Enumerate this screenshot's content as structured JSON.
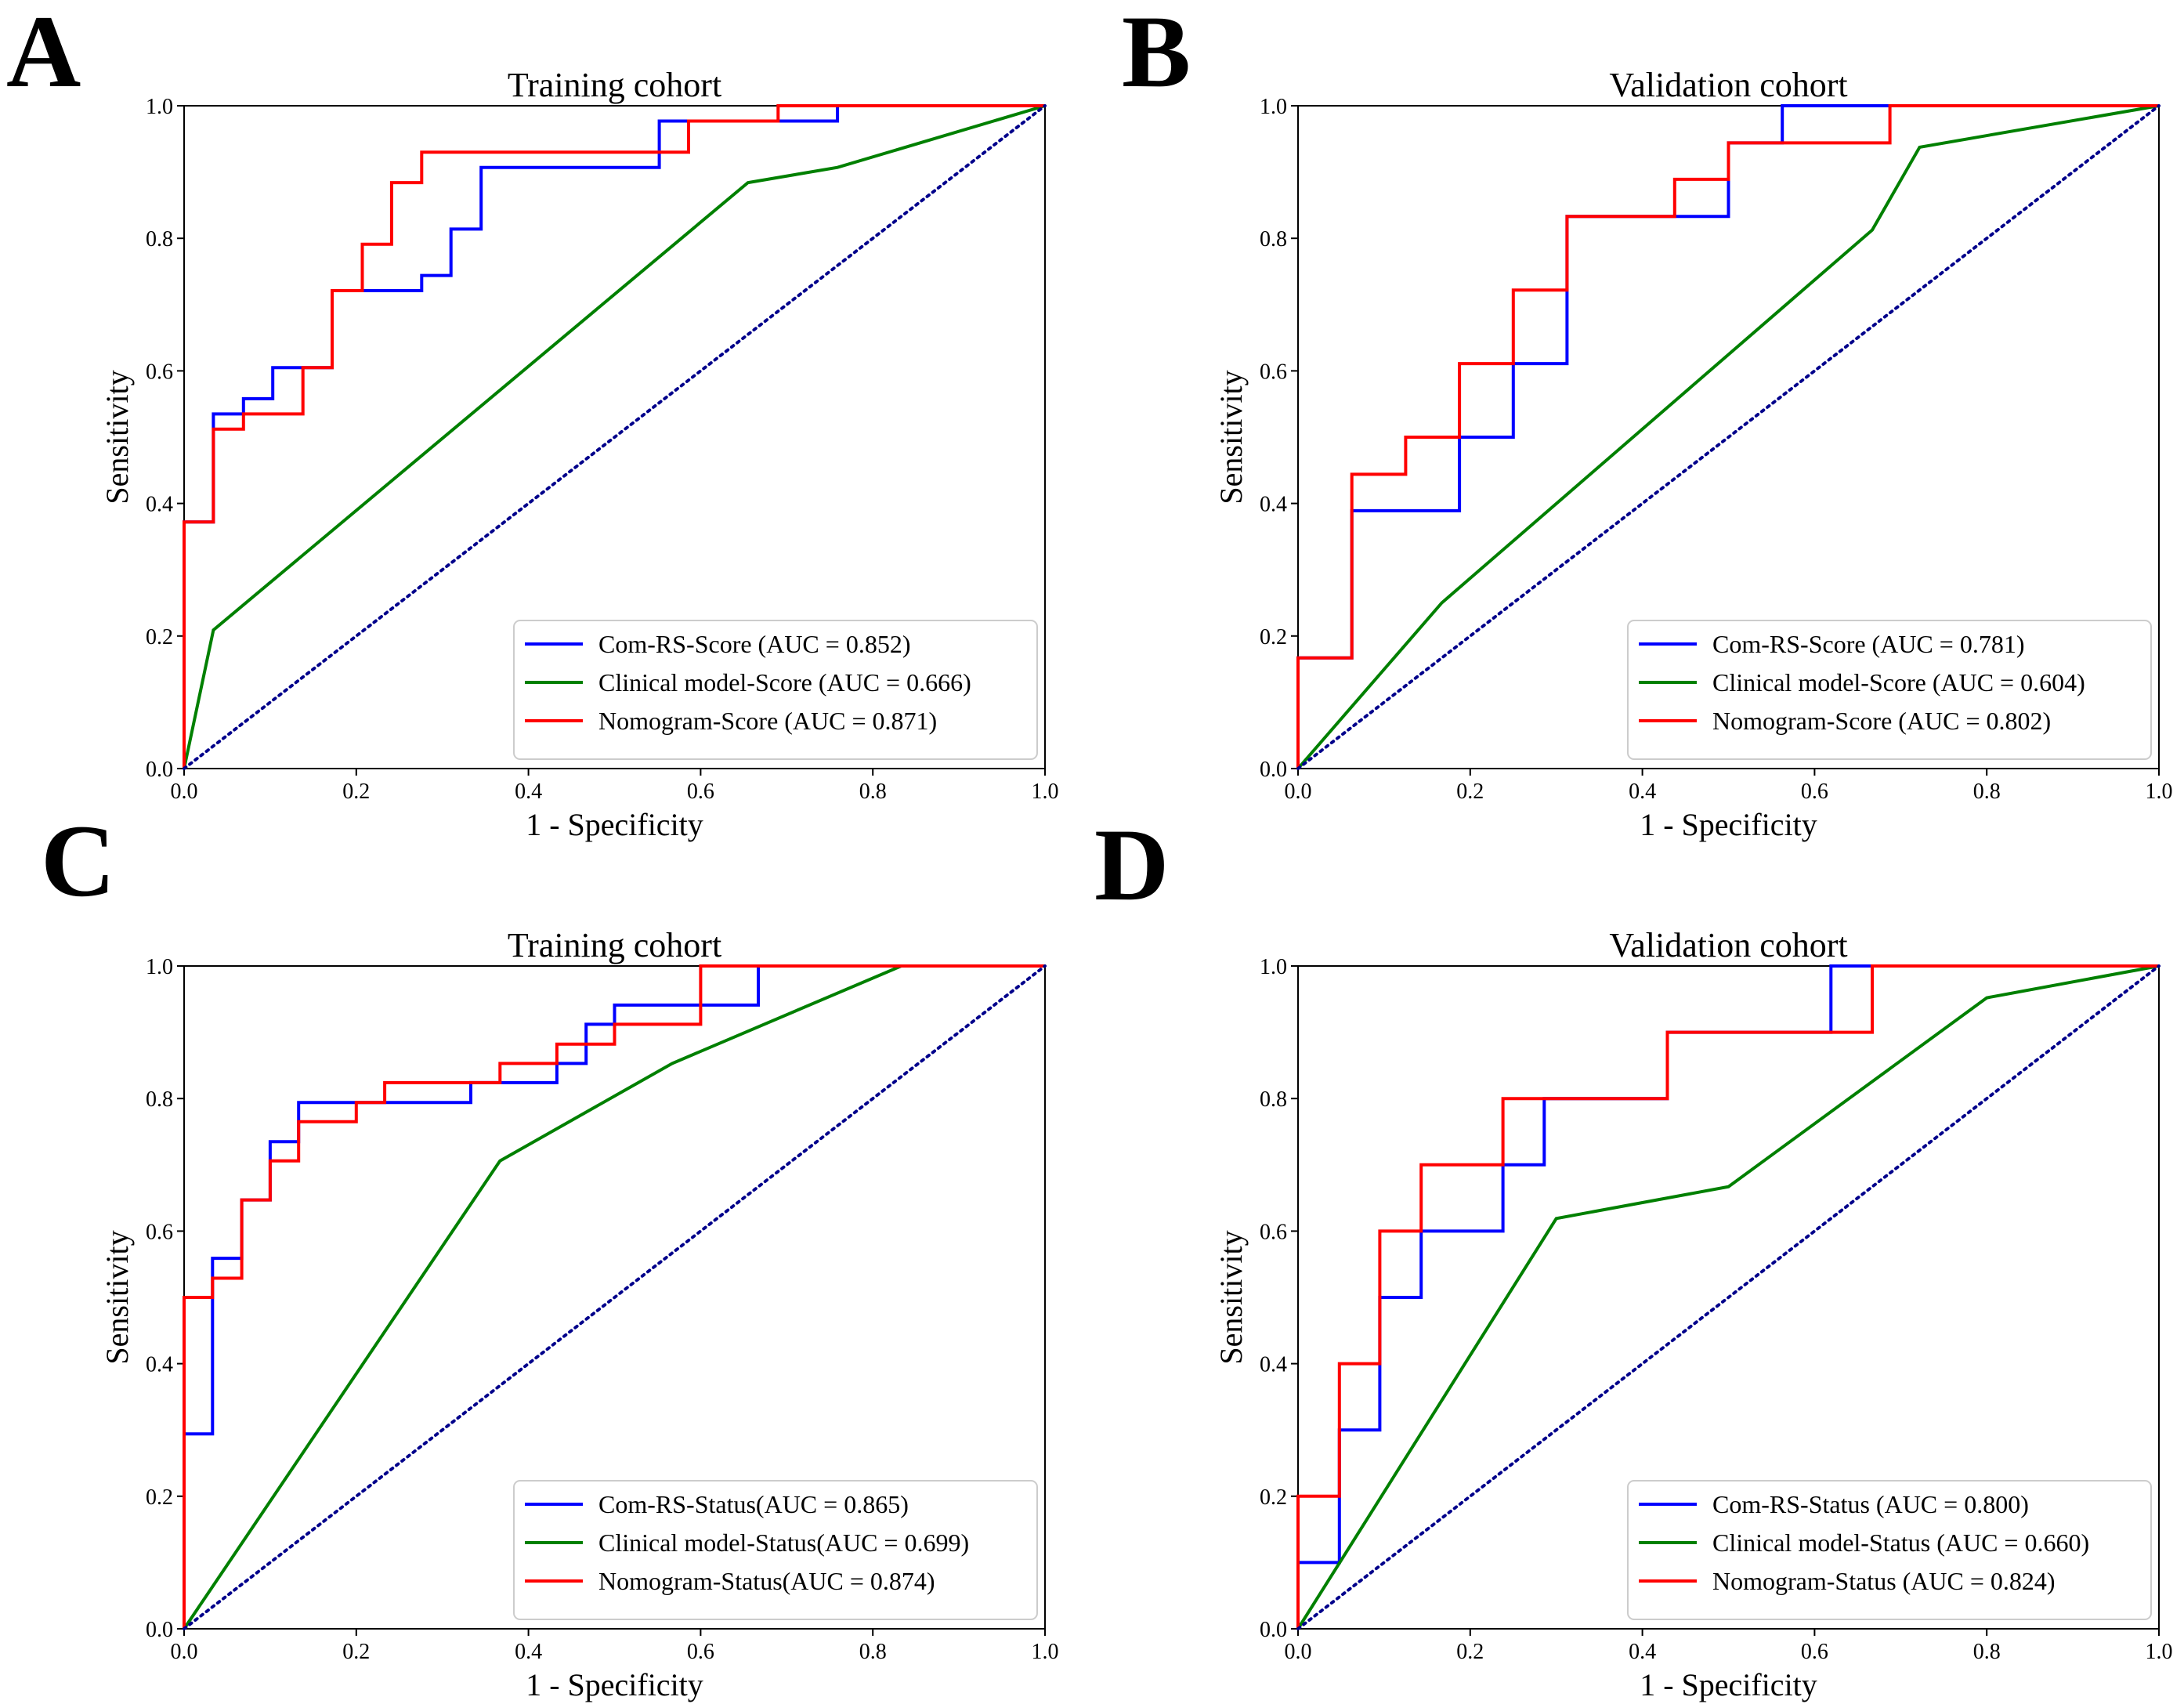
{
  "chart_data": [
    {
      "type": "line",
      "panel_label": "A",
      "title": "Training cohort",
      "xlabel": "1 - Specificity",
      "ylabel": "Sensitivity",
      "xlim": [
        0,
        1
      ],
      "ylim": [
        0,
        1
      ],
      "xticks": [
        "0.0",
        "0.2",
        "0.4",
        "0.6",
        "0.8",
        "1.0"
      ],
      "yticks": [
        "0.0",
        "0.2",
        "0.4",
        "0.6",
        "0.8",
        "1.0"
      ],
      "legend_position": "lower-right",
      "series": [
        {
          "name": "Com-RS-Score (AUC = 0.852)",
          "color": "#0000ff",
          "x": [
            0,
            0,
            0.034,
            0.034,
            0.069,
            0.069,
            0.103,
            0.103,
            0.138,
            0.138,
            0.172,
            0.172,
            0.276,
            0.276,
            0.31,
            0.31,
            0.345,
            0.345,
            0.552,
            0.552,
            0.759,
            0.759,
            1
          ],
          "y": [
            0,
            0.372,
            0.372,
            0.535,
            0.535,
            0.558,
            0.558,
            0.605,
            0.605,
            0.605,
            0.605,
            0.721,
            0.721,
            0.744,
            0.744,
            0.814,
            0.814,
            0.907,
            0.907,
            0.977,
            0.977,
            1,
            1
          ]
        },
        {
          "name": "Clinical model-Score (AUC = 0.666)",
          "color": "#008000",
          "x": [
            0,
            0.034,
            0.655,
            0.759,
            1
          ],
          "y": [
            0,
            0.209,
            0.884,
            0.907,
            1
          ]
        },
        {
          "name": "Nomogram-Score (AUC = 0.871)",
          "color": "#ff0000",
          "x": [
            0,
            0,
            0.034,
            0.034,
            0.069,
            0.069,
            0.138,
            0.138,
            0.172,
            0.172,
            0.207,
            0.207,
            0.241,
            0.241,
            0.276,
            0.276,
            0.586,
            0.586,
            0.69,
            0.69,
            1
          ],
          "y": [
            0,
            0.372,
            0.372,
            0.512,
            0.512,
            0.535,
            0.535,
            0.605,
            0.605,
            0.721,
            0.721,
            0.791,
            0.791,
            0.884,
            0.884,
            0.93,
            0.93,
            0.977,
            0.977,
            1,
            1
          ]
        },
        {
          "name": "Chance",
          "color": "#00008b",
          "dashed": true,
          "legend": false,
          "x": [
            0,
            1
          ],
          "y": [
            0,
            1
          ]
        }
      ]
    },
    {
      "type": "line",
      "panel_label": "B",
      "title": "Validation cohort",
      "xlabel": "1 - Specificity",
      "ylabel": "Sensitivity",
      "xlim": [
        0,
        1
      ],
      "ylim": [
        0,
        1
      ],
      "xticks": [
        "0.0",
        "0.2",
        "0.4",
        "0.6",
        "0.8",
        "1.0"
      ],
      "yticks": [
        "0.0",
        "0.2",
        "0.4",
        "0.6",
        "0.8",
        "1.0"
      ],
      "legend_position": "lower-right",
      "series": [
        {
          "name": "Com-RS-Score (AUC = 0.781)",
          "color": "#0000ff",
          "x": [
            0,
            0,
            0.0625,
            0.0625,
            0.1875,
            0.1875,
            0.25,
            0.25,
            0.3125,
            0.3125,
            0.5,
            0.5,
            0.5625,
            0.5625,
            1
          ],
          "y": [
            0,
            0.167,
            0.167,
            0.389,
            0.389,
            0.5,
            0.5,
            0.611,
            0.611,
            0.833,
            0.833,
            0.944,
            0.944,
            1,
            1
          ]
        },
        {
          "name": "Clinical model-Score (AUC = 0.604)",
          "color": "#008000",
          "x": [
            0,
            0.167,
            0.667,
            0.722,
            1
          ],
          "y": [
            0,
            0.25,
            0.8125,
            0.9375,
            1
          ]
        },
        {
          "name": "Nomogram-Score (AUC = 0.802)",
          "color": "#ff0000",
          "x": [
            0,
            0,
            0.0625,
            0.0625,
            0.125,
            0.125,
            0.1875,
            0.1875,
            0.25,
            0.25,
            0.3125,
            0.3125,
            0.4375,
            0.4375,
            0.5,
            0.5,
            0.6875,
            0.6875,
            1
          ],
          "y": [
            0,
            0.167,
            0.167,
            0.444,
            0.444,
            0.5,
            0.5,
            0.611,
            0.611,
            0.722,
            0.722,
            0.833,
            0.833,
            0.889,
            0.889,
            0.944,
            0.944,
            1,
            1
          ]
        },
        {
          "name": "Chance",
          "color": "#00008b",
          "dashed": true,
          "legend": false,
          "x": [
            0,
            1
          ],
          "y": [
            0,
            1
          ]
        }
      ]
    },
    {
      "type": "line",
      "panel_label": "C",
      "title": "Training cohort",
      "xlabel": "1 - Specificity",
      "ylabel": "Sensitivity",
      "xlim": [
        0,
        1
      ],
      "ylim": [
        0,
        1
      ],
      "xticks": [
        "0.0",
        "0.2",
        "0.4",
        "0.6",
        "0.8",
        "1.0"
      ],
      "yticks": [
        "0.0",
        "0.2",
        "0.4",
        "0.6",
        "0.8",
        "1.0"
      ],
      "legend_position": "lower-right",
      "series": [
        {
          "name": "Com-RS-Status(AUC = 0.865)",
          "color": "#0000ff",
          "x": [
            0,
            0,
            0.033,
            0.033,
            0.067,
            0.067,
            0.1,
            0.1,
            0.133,
            0.133,
            0.333,
            0.333,
            0.433,
            0.433,
            0.467,
            0.467,
            0.5,
            0.5,
            0.667,
            0.667,
            1
          ],
          "y": [
            0,
            0.294,
            0.294,
            0.559,
            0.559,
            0.647,
            0.647,
            0.735,
            0.735,
            0.794,
            0.794,
            0.824,
            0.824,
            0.853,
            0.853,
            0.912,
            0.912,
            0.941,
            0.941,
            1,
            1
          ]
        },
        {
          "name": "Clinical model-Status(AUC = 0.699)",
          "color": "#008000",
          "x": [
            0,
            0.367,
            0.567,
            0.833,
            1
          ],
          "y": [
            0,
            0.706,
            0.853,
            1,
            1
          ]
        },
        {
          "name": "Nomogram-Status(AUC = 0.874)",
          "color": "#ff0000",
          "x": [
            0,
            0,
            0.033,
            0.033,
            0.067,
            0.067,
            0.1,
            0.1,
            0.133,
            0.133,
            0.2,
            0.2,
            0.233,
            0.233,
            0.367,
            0.367,
            0.433,
            0.433,
            0.5,
            0.5,
            0.6,
            0.6,
            1
          ],
          "y": [
            0,
            0.5,
            0.5,
            0.529,
            0.529,
            0.647,
            0.647,
            0.706,
            0.706,
            0.765,
            0.765,
            0.794,
            0.794,
            0.824,
            0.824,
            0.853,
            0.853,
            0.882,
            0.882,
            0.912,
            0.912,
            1,
            1
          ]
        },
        {
          "name": "Chance",
          "color": "#00008b",
          "dashed": true,
          "legend": false,
          "x": [
            0,
            1
          ],
          "y": [
            0,
            1
          ]
        }
      ]
    },
    {
      "type": "line",
      "panel_label": "D",
      "title": "Validation cohort",
      "xlabel": "1 - Specificity",
      "ylabel": "Sensitivity",
      "xlim": [
        0,
        1
      ],
      "ylim": [
        0,
        1
      ],
      "xticks": [
        "0.0",
        "0.2",
        "0.4",
        "0.6",
        "0.8",
        "1.0"
      ],
      "yticks": [
        "0.0",
        "0.2",
        "0.4",
        "0.6",
        "0.8",
        "1.0"
      ],
      "legend_position": "lower-right",
      "series": [
        {
          "name": "Com-RS-Status (AUC = 0.800)",
          "color": "#0000ff",
          "x": [
            0,
            0,
            0.048,
            0.048,
            0.095,
            0.095,
            0.143,
            0.143,
            0.238,
            0.238,
            0.286,
            0.286,
            0.429,
            0.429,
            0.619,
            0.619,
            1
          ],
          "y": [
            0,
            0.1,
            0.1,
            0.3,
            0.3,
            0.5,
            0.5,
            0.6,
            0.6,
            0.7,
            0.7,
            0.8,
            0.8,
            0.9,
            0.9,
            1,
            1
          ]
        },
        {
          "name": "Clinical model-Status (AUC = 0.660)",
          "color": "#008000",
          "x": [
            0,
            0.3,
            0.5,
            0.8,
            1
          ],
          "y": [
            0,
            0.619,
            0.667,
            0.952,
            1
          ]
        },
        {
          "name": "Nomogram-Status (AUC = 0.824)",
          "color": "#ff0000",
          "x": [
            0,
            0,
            0.048,
            0.048,
            0.095,
            0.095,
            0.143,
            0.143,
            0.238,
            0.238,
            0.429,
            0.429,
            0.667,
            0.667,
            1
          ],
          "y": [
            0,
            0.2,
            0.2,
            0.4,
            0.4,
            0.6,
            0.6,
            0.7,
            0.7,
            0.8,
            0.8,
            0.9,
            0.9,
            1,
            1
          ]
        },
        {
          "name": "Chance",
          "color": "#00008b",
          "dashed": true,
          "legend": false,
          "x": [
            0,
            1
          ],
          "y": [
            0,
            1
          ]
        }
      ]
    }
  ]
}
